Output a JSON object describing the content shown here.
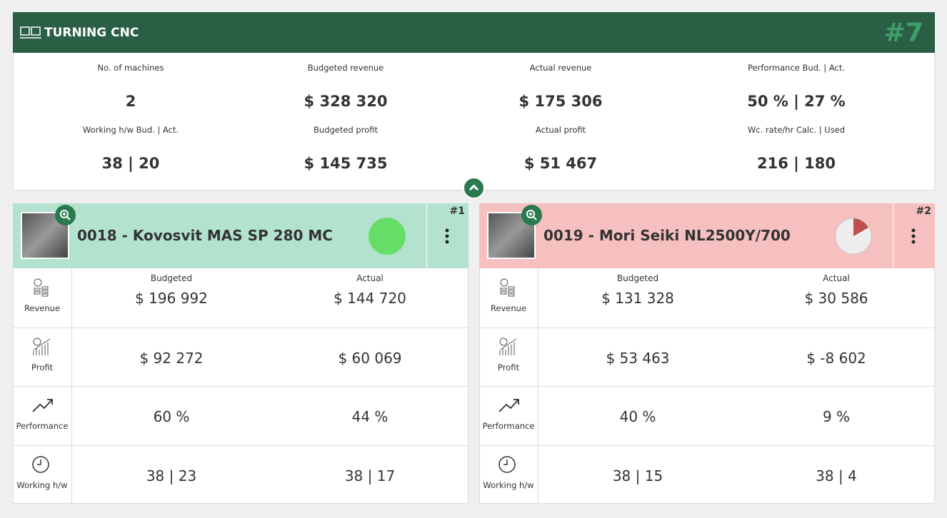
{
  "header": {
    "title": "TURNING CNC",
    "number": "#7"
  },
  "summary": [
    {
      "label": "No. of machines",
      "value": "2"
    },
    {
      "label": "Budgeted revenue",
      "value": "$ 328 320"
    },
    {
      "label": "Actual revenue",
      "value": "$ 175 306"
    },
    {
      "label": "Performance Bud. | Act.",
      "value": "50 % | 27 %"
    },
    {
      "label": "Working h/w Bud. | Act.",
      "value": "38 | 20"
    },
    {
      "label": "Budgeted profit",
      "value": "$ 145 735"
    },
    {
      "label": "Actual profit",
      "value": "$ 51 467"
    },
    {
      "label": "Wc. rate/hr Calc. | Used",
      "value": "216 | 180"
    }
  ],
  "columns": [
    "Budgeted",
    "Actual"
  ],
  "machines": [
    {
      "rank": "#1",
      "name": "0018 - Kovosvit MAS SP 280 MC",
      "rows": [
        {
          "label": "Revenue",
          "budgeted": "$ 196 992",
          "actual": "$ 144 720"
        },
        {
          "label": "Profit",
          "budgeted": "$ 92 272",
          "actual": "$ 60 069"
        },
        {
          "label": "Performance",
          "budgeted": "60 %",
          "actual": "44 %"
        },
        {
          "label": "Working h/w",
          "budgeted": "38 | 23",
          "actual": "38 | 17"
        }
      ]
    },
    {
      "rank": "#2",
      "name": "0019 - Mori Seiki NL2500Y/700",
      "rows": [
        {
          "label": "Revenue",
          "budgeted": "$ 131 328",
          "actual": "$ 30 586"
        },
        {
          "label": "Profit",
          "budgeted": "$ 53 463",
          "actual": "$ -8 602"
        },
        {
          "label": "Performance",
          "budgeted": "40 %",
          "actual": "9 %"
        },
        {
          "label": "Working h/w",
          "budgeted": "38 | 15",
          "actual": "38 | 4"
        }
      ]
    }
  ]
}
